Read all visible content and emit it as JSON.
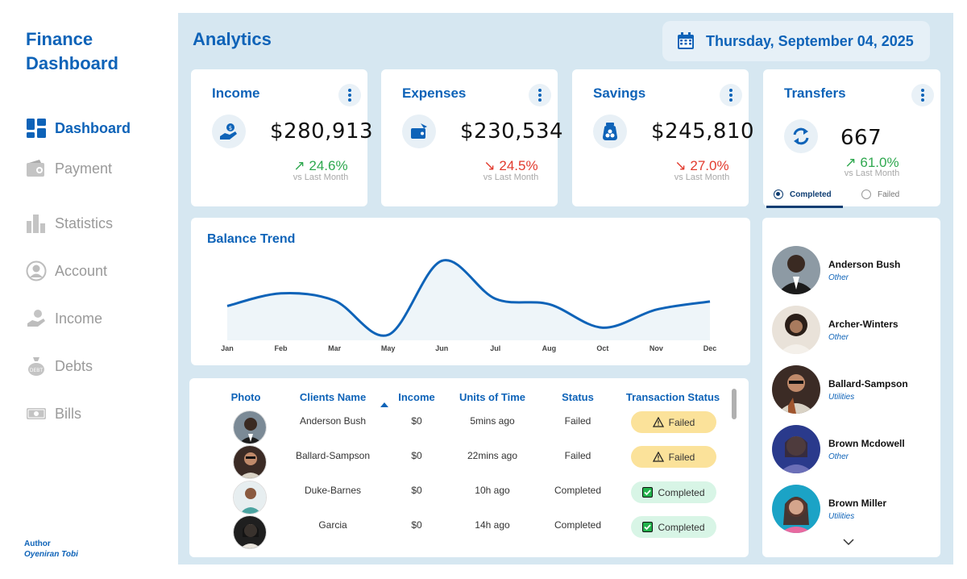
{
  "sidebar": {
    "brand_line1": "Finance",
    "brand_line2": "Dashboard",
    "items": [
      {
        "label": "Dashboard",
        "icon": "grid-icon",
        "active": true
      },
      {
        "label": "Payment",
        "icon": "wallet-icon",
        "active": false
      },
      {
        "label": "Statistics",
        "icon": "bar-chart-icon",
        "active": false
      },
      {
        "label": "Account",
        "icon": "user-circle-icon",
        "active": false
      },
      {
        "label": "Income",
        "icon": "money-hand-icon",
        "active": false
      },
      {
        "label": "Debts",
        "icon": "debt-bag-icon",
        "active": false
      },
      {
        "label": "Bills",
        "icon": "bill-icon",
        "active": false
      }
    ],
    "author_role": "Author",
    "author_name": "Oyeniran Tobi"
  },
  "header": {
    "title": "Analytics",
    "date": "Thursday, September 04, 2025",
    "date_icon": "calendar-icon"
  },
  "kpis": {
    "income": {
      "title": "Income",
      "value": "$280,913",
      "change": "↗ 24.6%",
      "direction": "up",
      "sub": "vs Last Month",
      "icon": "money-hand-icon"
    },
    "expenses": {
      "title": "Expenses",
      "value": "$230,534",
      "change": "↘ 24.5%",
      "direction": "down",
      "sub": "vs Last Month",
      "icon": "wallet-out-icon"
    },
    "savings": {
      "title": "Savings",
      "value": "$245,810",
      "change": "↘ 27.0%",
      "direction": "down",
      "sub": "vs Last Month",
      "icon": "savings-jar-icon"
    },
    "transfers": {
      "title": "Transfers",
      "value": "667",
      "change": "↗ 61.0%",
      "direction": "up",
      "sub": "vs Last Month",
      "icon": "transfer-arrows-icon",
      "tab_completed": "Completed",
      "tab_failed": "Failed",
      "selected_tab": "Completed"
    }
  },
  "chart_data": {
    "type": "area",
    "title": "Balance Trend",
    "categories": [
      "Jan",
      "Feb",
      "Mar",
      "May",
      "Jun",
      "Jul",
      "Aug",
      "Oct",
      "Nov",
      "Dec"
    ],
    "values": [
      38,
      52,
      44,
      6,
      88,
      46,
      40,
      14,
      34,
      43
    ],
    "ylim": [
      0,
      100
    ],
    "grid": false,
    "color": "#0e63b8",
    "fill": "#eef5f9"
  },
  "table": {
    "headers": [
      "Photo",
      "Clients Name",
      "Income",
      "Units of Time",
      "Status",
      "Transaction Status"
    ],
    "rows": [
      {
        "name": "Anderson Bush",
        "income": "$0",
        "time": "5mins ago",
        "status": "Failed",
        "tx": "Failed",
        "tx_icon": "warning-icon"
      },
      {
        "name": "Ballard-Sampson",
        "income": "$0",
        "time": "22mins ago",
        "status": "Failed",
        "tx": "Failed",
        "tx_icon": "warning-icon"
      },
      {
        "name": "Duke-Barnes",
        "income": "$0",
        "time": "10h ago",
        "status": "Completed",
        "tx": "Completed",
        "tx_icon": "check-box-icon"
      },
      {
        "name": "Garcia",
        "income": "$0",
        "time": "14h ago",
        "status": "Completed",
        "tx": "Completed",
        "tx_icon": "check-box-icon"
      }
    ]
  },
  "clients": [
    {
      "name": "Anderson Bush",
      "category": "Other"
    },
    {
      "name": "Archer-Winters",
      "category": "Other"
    },
    {
      "name": "Ballard-Sampson",
      "category": "Utilities"
    },
    {
      "name": "Brown Mcdowell",
      "category": "Other"
    },
    {
      "name": "Brown Miller",
      "category": "Utilities"
    }
  ],
  "colors": {
    "accent": "#0e63b8",
    "background": "#d6e7f1",
    "up": "#2fa84f",
    "down": "#e23b2e",
    "failed_badge": "#fbe29a",
    "completed_badge": "#d8f5e6"
  }
}
